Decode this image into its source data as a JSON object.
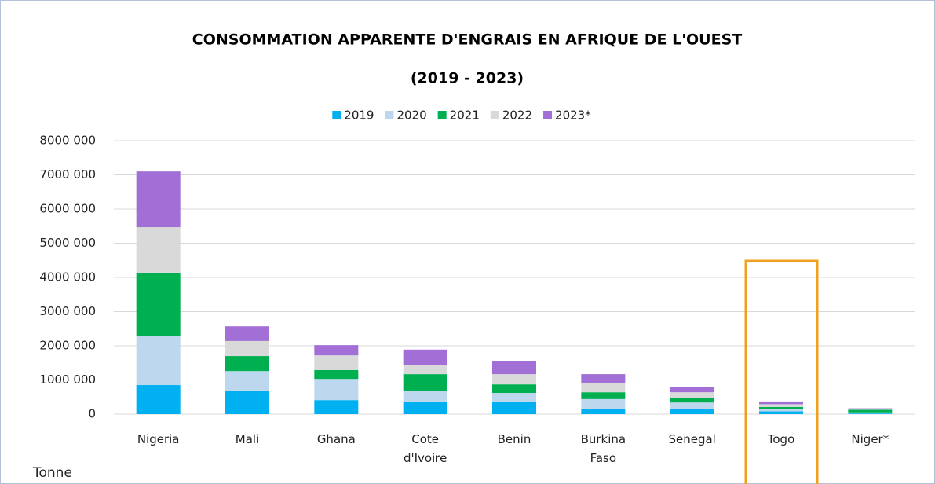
{
  "chart_data": {
    "type": "stacked_bar",
    "title": "CONSOMMATION APPARENTE D'ENGRAIS EN AFRIQUE DE L'OUEST",
    "subtitle": "(2019 - 2023)",
    "y_label": "Tonne",
    "categories": [
      "Nigeria",
      "Mali",
      "Ghana",
      "Cote d'Ivoire",
      "Benin",
      "Burkina Faso",
      "Senegal",
      "Togo",
      "Niger*"
    ],
    "series": [
      {
        "name": "2019",
        "color": "#00b0f0",
        "values": [
          850000,
          690000,
          410000,
          370000,
          370000,
          160000,
          160000,
          80000,
          20000
        ]
      },
      {
        "name": "2020",
        "color": "#bdd7ee",
        "values": [
          1430000,
          570000,
          620000,
          320000,
          250000,
          280000,
          180000,
          80000,
          30000
        ]
      },
      {
        "name": "2021",
        "color": "#00b050",
        "values": [
          1860000,
          440000,
          260000,
          480000,
          250000,
          200000,
          120000,
          50000,
          80000
        ]
      },
      {
        "name": "2022",
        "color": "#d9d9d9",
        "values": [
          1330000,
          440000,
          430000,
          260000,
          300000,
          280000,
          180000,
          80000,
          30000
        ]
      },
      {
        "name": "2023*",
        "color": "#a26fd6",
        "values": [
          1630000,
          430000,
          300000,
          460000,
          370000,
          250000,
          160000,
          80000,
          10000
        ]
      }
    ],
    "ylim": [
      0,
      8000000
    ],
    "yticks": [
      0,
      {
        "value": 1000000,
        "label": "1000 000"
      },
      {
        "value": 2000000,
        "label": "2000 000"
      },
      {
        "value": 3000000,
        "label": "3000 000"
      },
      {
        "value": 4000000,
        "label": "4000 000"
      },
      {
        "value": 5000000,
        "label": "5000 000"
      },
      {
        "value": 6000000,
        "label": "6000 000"
      },
      {
        "value": 7000000,
        "label": "7000 000"
      },
      {
        "value": 8000000,
        "label": "8000 000"
      }
    ],
    "grid": true,
    "legend": "top"
  }
}
